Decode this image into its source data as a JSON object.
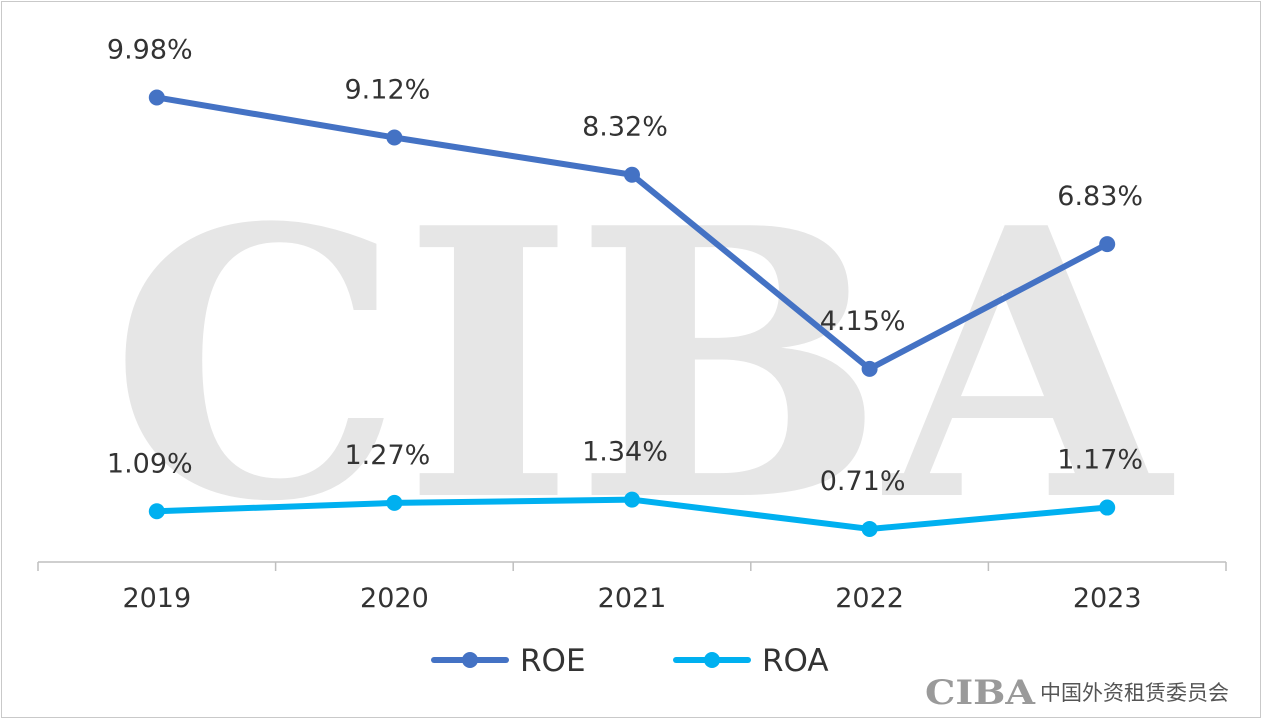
{
  "chart_data": {
    "type": "line",
    "title": "",
    "xlabel": "",
    "ylabel": "",
    "categories": [
      "2019",
      "2020",
      "2021",
      "2022",
      "2023"
    ],
    "ylim": [
      0,
      11
    ],
    "grid": false,
    "legend_position": "bottom-center",
    "series": [
      {
        "name": "ROE",
        "color": "#4472C4",
        "values": [
          9.98,
          9.12,
          8.32,
          4.15,
          6.83
        ],
        "labels": [
          "9.98%",
          "9.12%",
          "8.32%",
          "4.15%",
          "6.83%"
        ]
      },
      {
        "name": "ROA",
        "color": "#00B0F0",
        "values": [
          1.09,
          1.27,
          1.34,
          0.71,
          1.17
        ],
        "labels": [
          "1.09%",
          "1.27%",
          "1.34%",
          "0.71%",
          "1.17%"
        ]
      }
    ]
  },
  "watermark": {
    "text": "CIBA"
  },
  "branding": {
    "logo_text": "CIBA",
    "org_name": "中国外资租赁委员会"
  }
}
